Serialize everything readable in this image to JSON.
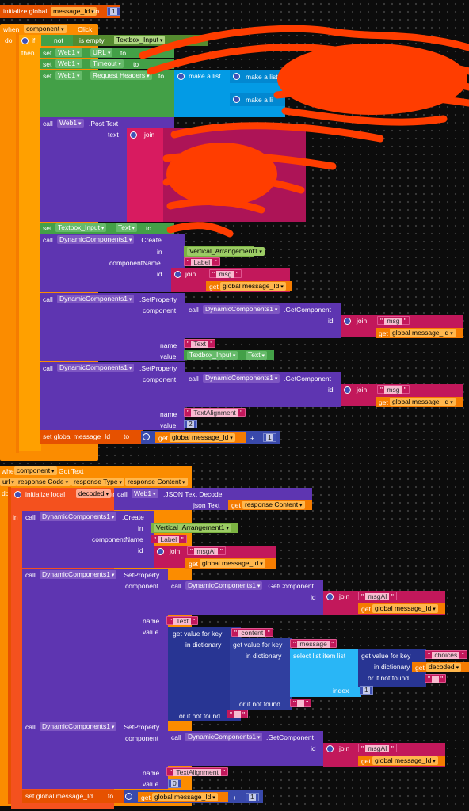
{
  "global_init": {
    "label": "initialize global",
    "var": "message_Id",
    "to": "to",
    "value": "1"
  },
  "event1": {
    "when": "when",
    "component": "component",
    "event": "Click",
    "do": "do",
    "if": "if",
    "not": "not",
    "is_empty": "is empty",
    "textbox": "Textbox_Input",
    "then": "then",
    "set": "set",
    "web1": "Web1",
    "url": "URL",
    "timeout": "Timeout",
    "req_headers": "Request Headers",
    "to": "to",
    "make_a_list": "make a list",
    "make_a_list2": "make a list",
    "make_a_l": "make a li",
    "call": "call",
    "post_text": ".Post Text",
    "text": "text",
    "join": "join",
    "set_textbox": "Textbox_Input",
    "text_prop": "Text",
    "dyn": "DynamicComponents1",
    "create": ".Create",
    "in": "in",
    "arrangement": "Vertical_Arrangement1",
    "componentName": "componentName",
    "label_str": "Label",
    "id": "id",
    "msg": "msg",
    "get": "get",
    "global_msg": "global message_Id",
    "setproperty": ".SetProperty",
    "getcomponent": ".GetComponent",
    "name": "name",
    "value": "value",
    "text_str": "Text",
    "textalign": "TextAlignment",
    "two": "2",
    "set_global": "set global message_Id",
    "plus": "+",
    "one": "1"
  },
  "event2": {
    "when": "when",
    "component": "component",
    "event": "Got Text",
    "params": [
      "url",
      "response Code",
      "response Type",
      "response Content"
    ],
    "do": "do",
    "init_local": "initialize local",
    "decoded": "decoded",
    "to": "to",
    "call": "call",
    "web1": "Web1",
    "json_decode": ".JSON Text Decode",
    "json_text": "json Text",
    "get": "get",
    "response_content": "response Content",
    "in": "in",
    "dyn": "DynamicComponents1",
    "create": ".Create",
    "arrangement": "Vertical_Arrangement1",
    "componentName": "componentName",
    "label_str": "Label",
    "id": "id",
    "msgai": "msgAI",
    "global_msg": "global message_Id",
    "join": "join",
    "setproperty": ".SetProperty",
    "getcomponent": ".GetComponent",
    "name": "name",
    "value": "value",
    "text_str": "Text",
    "get_value_for_key": "get value for key",
    "content": "content",
    "in_dictionary": "in dictionary",
    "message": "message",
    "select_list_item": "select list item  list",
    "choices": "choices",
    "or_if_not_found": "or if not found",
    "index": "index",
    "one": "1",
    "textalign": "TextAlignment",
    "zero": "0",
    "set_global": "set global message_Id",
    "plus": "+"
  },
  "colors": {
    "event": "#fb8c00",
    "procedure": "#5e35b1",
    "text": "#c2185b",
    "scribble": "#ff3d00"
  }
}
